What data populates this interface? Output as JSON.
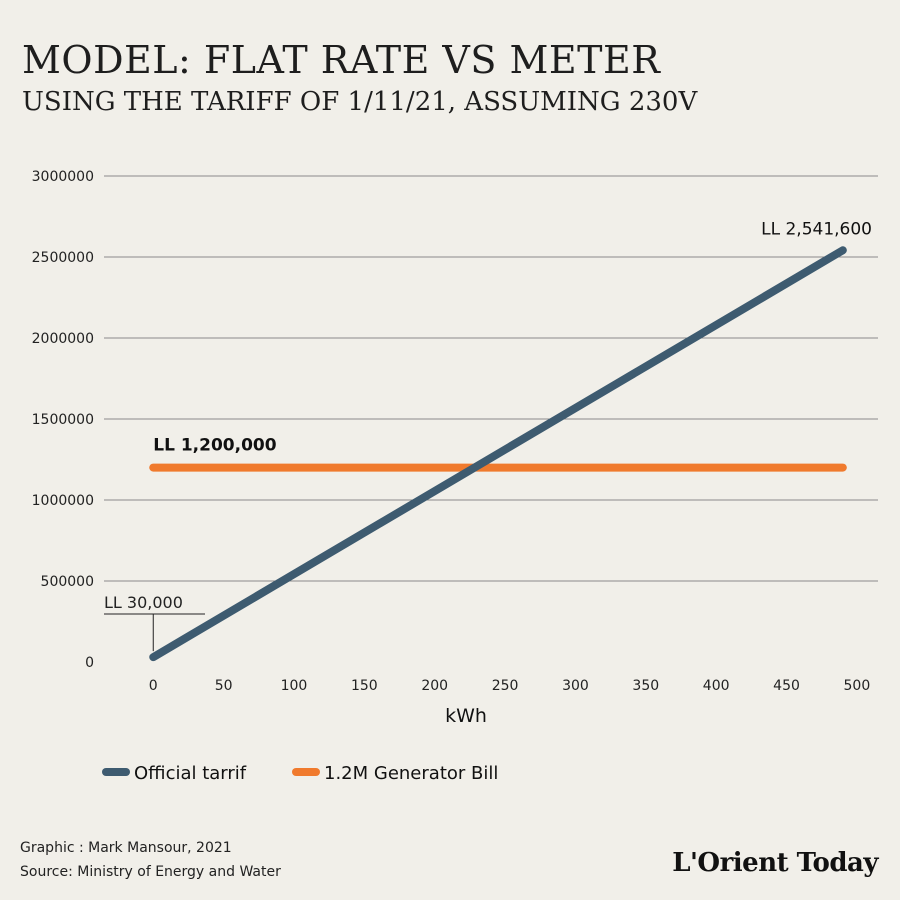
{
  "header": {
    "title": "MODEL: FLAT RATE VS METER",
    "subtitle": "USING THE TARIFF OF 1/11/21, ASSUMING 230V"
  },
  "chart_data": {
    "type": "line",
    "title": "MODEL: FLAT RATE VS METER",
    "subtitle": "USING THE TARIFF OF 1/11/21, ASSUMING 230V",
    "xlabel": "kWh",
    "ylabel": "",
    "xlim": [
      -35,
      515
    ],
    "ylim": [
      0,
      3000000
    ],
    "x_ticks": [
      0,
      50,
      100,
      150,
      200,
      250,
      300,
      350,
      400,
      450,
      500
    ],
    "y_ticks": [
      0,
      500000,
      1000000,
      1500000,
      2000000,
      2500000,
      3000000
    ],
    "grid": "horizontal",
    "legend_position": "bottom-left",
    "series": [
      {
        "name": "Official tarrif",
        "color": "#3e5b70",
        "x": [
          0,
          490
        ],
        "values": [
          30000,
          2541600
        ]
      },
      {
        "name": "1.2M Generator Bill",
        "color": "#f07a2d",
        "x": [
          0,
          490
        ],
        "values": [
          1200000,
          1200000
        ]
      }
    ],
    "annotations": [
      {
        "text": "LL 30,000",
        "x": 0,
        "y": 30000
      },
      {
        "text": "LL 1,200,000",
        "x": 0,
        "y": 1200000
      },
      {
        "text": "LL 2,541,600",
        "x": 490,
        "y": 2541600
      }
    ]
  },
  "footer": {
    "credit": "Graphic : Mark Mansour, 2021",
    "source": "Source: Ministry of Energy and Water",
    "logo": "L'Orient Today"
  }
}
